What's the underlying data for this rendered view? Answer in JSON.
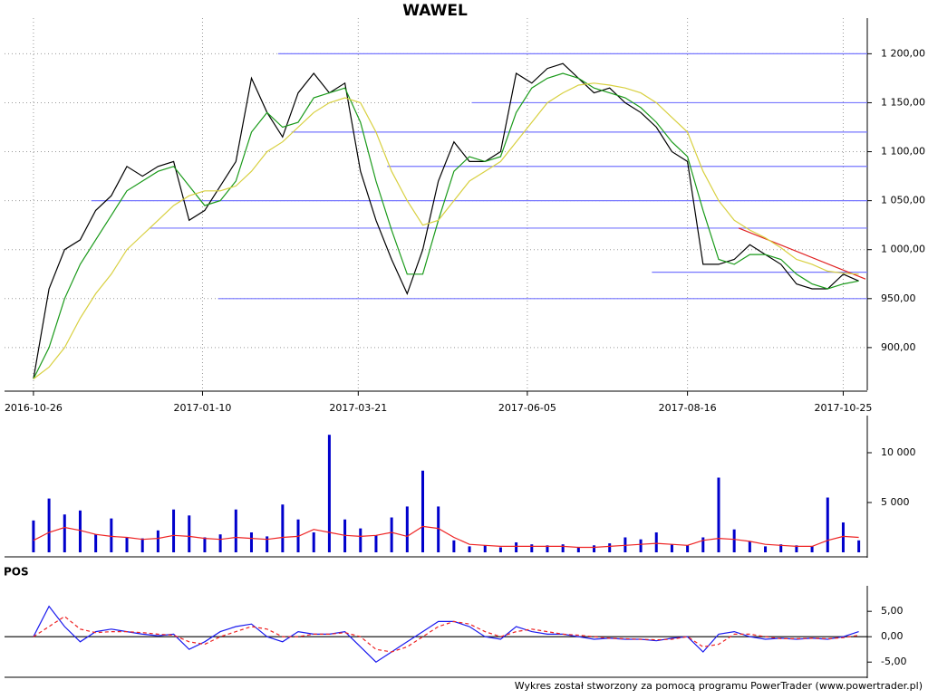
{
  "chart_data": [
    {
      "type": "line",
      "title": "WAWEL",
      "x": [
        "2016-10-26",
        "2016-11-02",
        "2016-11-09",
        "2016-11-16",
        "2016-11-23",
        "2016-11-30",
        "2016-12-07",
        "2016-12-14",
        "2016-12-21",
        "2016-12-28",
        "2017-01-04",
        "2017-01-11",
        "2017-01-18",
        "2017-01-25",
        "2017-02-01",
        "2017-02-08",
        "2017-02-15",
        "2017-02-22",
        "2017-03-01",
        "2017-03-08",
        "2017-03-15",
        "2017-03-22",
        "2017-03-29",
        "2017-04-05",
        "2017-04-12",
        "2017-04-19",
        "2017-04-26",
        "2017-05-03",
        "2017-05-10",
        "2017-05-17",
        "2017-05-24",
        "2017-05-31",
        "2017-06-07",
        "2017-06-14",
        "2017-06-21",
        "2017-06-28",
        "2017-07-05",
        "2017-07-12",
        "2017-07-19",
        "2017-07-26",
        "2017-08-02",
        "2017-08-09",
        "2017-08-16",
        "2017-08-23",
        "2017-08-30",
        "2017-09-06",
        "2017-09-13",
        "2017-09-20",
        "2017-09-27",
        "2017-10-04",
        "2017-10-11",
        "2017-10-18",
        "2017-10-25",
        "2017-11-01"
      ],
      "series": [
        {
          "color": "#000000",
          "values": [
            868,
            960,
            1000,
            1010,
            1040,
            1055,
            1085,
            1075,
            1085,
            1090,
            1030,
            1040,
            1065,
            1090,
            1175,
            1140,
            1115,
            1160,
            1180,
            1160,
            1170,
            1080,
            1030,
            990,
            955,
            1000,
            1070,
            1110,
            1090,
            1090,
            1100,
            1180,
            1170,
            1185,
            1190,
            1175,
            1160,
            1165,
            1150,
            1140,
            1125,
            1100,
            1090,
            985,
            985,
            990,
            1005,
            995,
            985,
            965,
            960,
            960,
            975,
            968
          ]
        },
        {
          "color": "#1a9a1a",
          "values": [
            868,
            900,
            950,
            985,
            1010,
            1035,
            1060,
            1070,
            1080,
            1085,
            1065,
            1045,
            1050,
            1070,
            1120,
            1140,
            1125,
            1130,
            1155,
            1160,
            1165,
            1130,
            1070,
            1020,
            975,
            975,
            1030,
            1080,
            1095,
            1090,
            1095,
            1140,
            1165,
            1175,
            1180,
            1175,
            1165,
            1160,
            1155,
            1145,
            1130,
            1110,
            1095,
            1040,
            990,
            985,
            995,
            995,
            990,
            975,
            965,
            960,
            965,
            968
          ]
        },
        {
          "color": "#d8d040",
          "values": [
            868,
            880,
            900,
            930,
            955,
            975,
            1000,
            1015,
            1030,
            1045,
            1055,
            1060,
            1060,
            1065,
            1080,
            1100,
            1110,
            1125,
            1140,
            1150,
            1155,
            1150,
            1120,
            1080,
            1050,
            1025,
            1030,
            1050,
            1070,
            1080,
            1090,
            1110,
            1130,
            1150,
            1160,
            1168,
            1170,
            1168,
            1165,
            1160,
            1150,
            1135,
            1120,
            1080,
            1050,
            1030,
            1020,
            1012,
            1002,
            990,
            985,
            978,
            976,
            975
          ]
        }
      ],
      "xlim": [
        "2016-10-13",
        "2017-11-04"
      ],
      "xticks": [
        "2016-10-26",
        "2017-01-10",
        "2017-03-21",
        "2017-06-05",
        "2017-08-16",
        "2017-10-25"
      ],
      "ylim": [
        862,
        1229
      ],
      "yticks": [
        {
          "value": 900,
          "label": "900,00"
        },
        {
          "value": 950,
          "label": "950,00"
        },
        {
          "value": 1000,
          "label": "1 000,00"
        },
        {
          "value": 1050,
          "label": "1 050,00"
        },
        {
          "value": 1100,
          "label": "1 100,00"
        },
        {
          "value": 1150,
          "label": "1 150,00"
        },
        {
          "value": 1200,
          "label": "1 200,00"
        }
      ],
      "grid": true,
      "reference_color": "#7777ff",
      "reference_lines": [
        {
          "value": 1200,
          "from": "2017-02-13"
        },
        {
          "value": 1150,
          "from": "2017-05-11"
        },
        {
          "value": 1120,
          "from": "2017-02-19"
        },
        {
          "value": 1085,
          "from": "2017-04-03"
        },
        {
          "value": 1050,
          "from": "2016-11-21"
        },
        {
          "value": 1022,
          "from": "2016-12-17"
        },
        {
          "value": 977,
          "from": "2017-07-31"
        },
        {
          "value": 950,
          "from": "2017-01-17"
        }
      ],
      "trend_line": {
        "color": "#e02020",
        "x": [
          "2017-09-08",
          "2017-11-04"
        ],
        "values": [
          1022,
          970
        ]
      }
    },
    {
      "type": "bar",
      "x": [
        "2016-10-26",
        "2016-11-02",
        "2016-11-09",
        "2016-11-16",
        "2016-11-23",
        "2016-11-30",
        "2016-12-07",
        "2016-12-14",
        "2016-12-21",
        "2016-12-28",
        "2017-01-04",
        "2017-01-11",
        "2017-01-18",
        "2017-01-25",
        "2017-02-01",
        "2017-02-08",
        "2017-02-15",
        "2017-02-22",
        "2017-03-01",
        "2017-03-08",
        "2017-03-15",
        "2017-03-22",
        "2017-03-29",
        "2017-04-05",
        "2017-04-12",
        "2017-04-19",
        "2017-04-26",
        "2017-05-03",
        "2017-05-10",
        "2017-05-17",
        "2017-05-24",
        "2017-05-31",
        "2017-06-07",
        "2017-06-14",
        "2017-06-21",
        "2017-06-28",
        "2017-07-05",
        "2017-07-12",
        "2017-07-19",
        "2017-07-26",
        "2017-08-02",
        "2017-08-09",
        "2017-08-16",
        "2017-08-23",
        "2017-08-30",
        "2017-09-06",
        "2017-09-13",
        "2017-09-20",
        "2017-09-27",
        "2017-10-04",
        "2017-10-11",
        "2017-10-18",
        "2017-10-25",
        "2017-11-01"
      ],
      "series": [
        {
          "mark": "bar",
          "color": "#0000cc",
          "values": [
            3200,
            5400,
            3800,
            4200,
            1800,
            3400,
            1500,
            1400,
            2200,
            4300,
            3700,
            1500,
            1800,
            4300,
            2000,
            1600,
            4800,
            3300,
            2000,
            11800,
            3300,
            2400,
            1700,
            3500,
            4600,
            8200,
            4600,
            1200,
            600,
            700,
            500,
            1000,
            800,
            700,
            800,
            500,
            700,
            900,
            1500,
            1300,
            2000,
            800,
            700,
            1500,
            7500,
            2300,
            1100,
            600,
            800,
            700,
            600,
            5500,
            3000,
            1200
          ]
        },
        {
          "mark": "line",
          "color": "#ee2222",
          "values": [
            1200,
            2000,
            2500,
            2200,
            1800,
            1600,
            1500,
            1300,
            1400,
            1700,
            1600,
            1400,
            1300,
            1500,
            1400,
            1300,
            1500,
            1600,
            2300,
            2000,
            1700,
            1600,
            1700,
            2000,
            1600,
            2600,
            2400,
            1500,
            800,
            700,
            600,
            600,
            600,
            600,
            600,
            500,
            500,
            600,
            700,
            800,
            900,
            800,
            700,
            1200,
            1400,
            1300,
            1100,
            800,
            700,
            600,
            600,
            1200,
            1600,
            1500
          ]
        }
      ],
      "xlim": [
        "2016-10-13",
        "2017-11-04"
      ],
      "ylim": [
        0,
        13000
      ],
      "yticks": [
        {
          "value": 5000,
          "label": "5 000"
        },
        {
          "value": 10000,
          "label": "10 000"
        }
      ]
    },
    {
      "type": "line",
      "title": "POS",
      "x": [
        "2016-10-26",
        "2016-11-02",
        "2016-11-09",
        "2016-11-16",
        "2016-11-23",
        "2016-11-30",
        "2016-12-07",
        "2016-12-14",
        "2016-12-21",
        "2016-12-28",
        "2017-01-04",
        "2017-01-11",
        "2017-01-18",
        "2017-01-25",
        "2017-02-01",
        "2017-02-08",
        "2017-02-15",
        "2017-02-22",
        "2017-03-01",
        "2017-03-08",
        "2017-03-15",
        "2017-03-22",
        "2017-03-29",
        "2017-04-05",
        "2017-04-12",
        "2017-04-19",
        "2017-04-26",
        "2017-05-03",
        "2017-05-10",
        "2017-05-17",
        "2017-05-24",
        "2017-05-31",
        "2017-06-07",
        "2017-06-14",
        "2017-06-21",
        "2017-06-28",
        "2017-07-05",
        "2017-07-12",
        "2017-07-19",
        "2017-07-26",
        "2017-08-02",
        "2017-08-09",
        "2017-08-16",
        "2017-08-23",
        "2017-08-30",
        "2017-09-06",
        "2017-09-13",
        "2017-09-20",
        "2017-09-27",
        "2017-10-04",
        "2017-10-11",
        "2017-10-18",
        "2017-10-25",
        "2017-11-01"
      ],
      "series": [
        {
          "color": "#1a1aee",
          "values": [
            0,
            6,
            2,
            -1,
            1,
            1.5,
            1,
            0.5,
            0.2,
            0.5,
            -2.5,
            -1,
            1,
            2,
            2.5,
            0,
            -1,
            1,
            0.5,
            0.5,
            1,
            -2,
            -5,
            -3,
            -1,
            1,
            3,
            3,
            2,
            0,
            -0.5,
            2,
            1,
            0.5,
            0.5,
            0,
            -0.5,
            -0.3,
            -0.5,
            -0.5,
            -0.8,
            -0.3,
            0,
            -3,
            0.5,
            1,
            0,
            -0.5,
            -0.3,
            -0.5,
            -0.3,
            -0.5,
            0,
            1
          ]
        },
        {
          "color": "#ee2222",
          "dash": true,
          "values": [
            0,
            2,
            4,
            1.5,
            0.8,
            1,
            1,
            0.8,
            0.5,
            0.3,
            -1,
            -1.5,
            0,
            1,
            2,
            1.5,
            0,
            0,
            0.5,
            0.5,
            0.8,
            0,
            -2.5,
            -3,
            -2,
            0,
            2,
            3,
            2.5,
            1,
            0,
            1,
            1.5,
            1,
            0.5,
            0.3,
            0,
            -0.3,
            -0.4,
            -0.5,
            -0.6,
            -0.5,
            0,
            -2,
            -1.5,
            0.5,
            0.5,
            0,
            -0.4,
            -0.4,
            -0.3,
            -0.4,
            -0.2,
            0.3
          ]
        }
      ],
      "xlim": [
        "2016-10-13",
        "2017-11-04"
      ],
      "ylim": [
        -7.1,
        8.6
      ],
      "yticks": [
        {
          "value": -5,
          "label": "-5,00"
        },
        {
          "value": 0,
          "label": "0,00"
        },
        {
          "value": 5,
          "label": "5,00"
        }
      ],
      "reference_color": "#000000",
      "reference_lines": [
        {
          "value": 0,
          "from": "2016-10-13"
        }
      ]
    }
  ],
  "footer": "Wykres został stworzony za pomocą programu PowerTrader (www.powertrader.pl)"
}
